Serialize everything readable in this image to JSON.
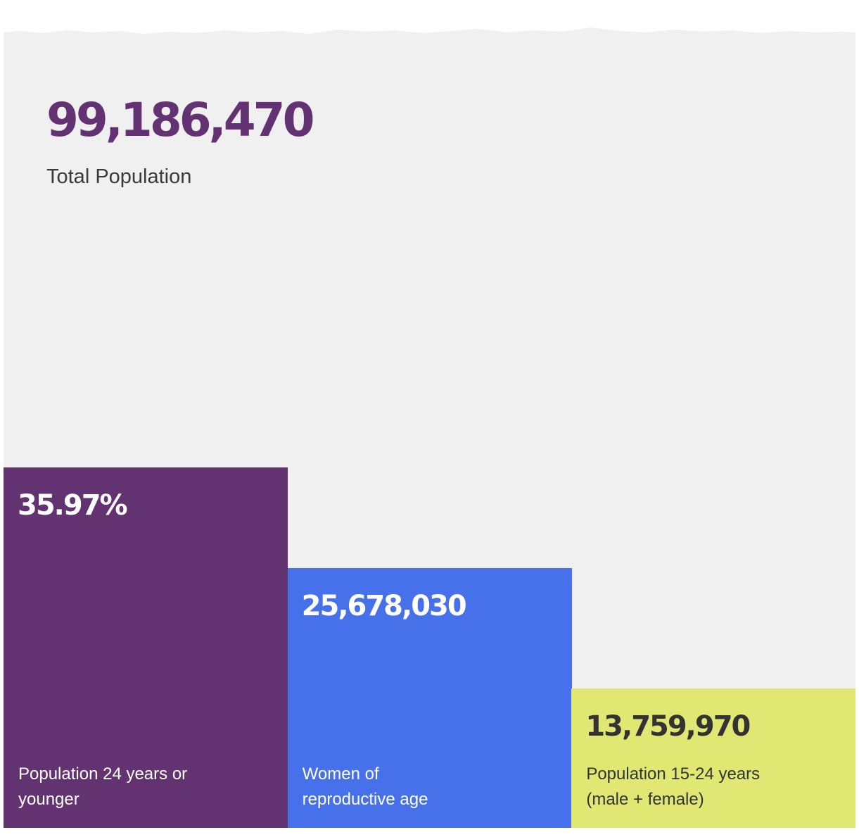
{
  "chart_data": {
    "type": "bar",
    "headline": {
      "value": "99,186,470",
      "label": "Total Population"
    },
    "categories": [
      "Population 24 years or younger",
      "Women of reproductive age",
      "Population 15-24 years (male + female)"
    ],
    "value_labels": [
      "35.97%",
      "25,678,030",
      "13,759,970"
    ],
    "label_lines": [
      [
        "Population 24 years or",
        "younger"
      ],
      [
        "Women of",
        "reproductive age"
      ],
      [
        "Population 15-24 years",
        "(male + female)"
      ]
    ],
    "values": [
      35.97,
      25.89,
      13.87
    ],
    "ylim": [
      0,
      66
    ],
    "colors": {
      "background": "#f0f0f0",
      "headline": "#623272",
      "bars": [
        "#623370",
        "#4770eb",
        "#e0e873"
      ],
      "bar_text": [
        "#ffffff",
        "#ffffff",
        "#333333"
      ]
    }
  }
}
